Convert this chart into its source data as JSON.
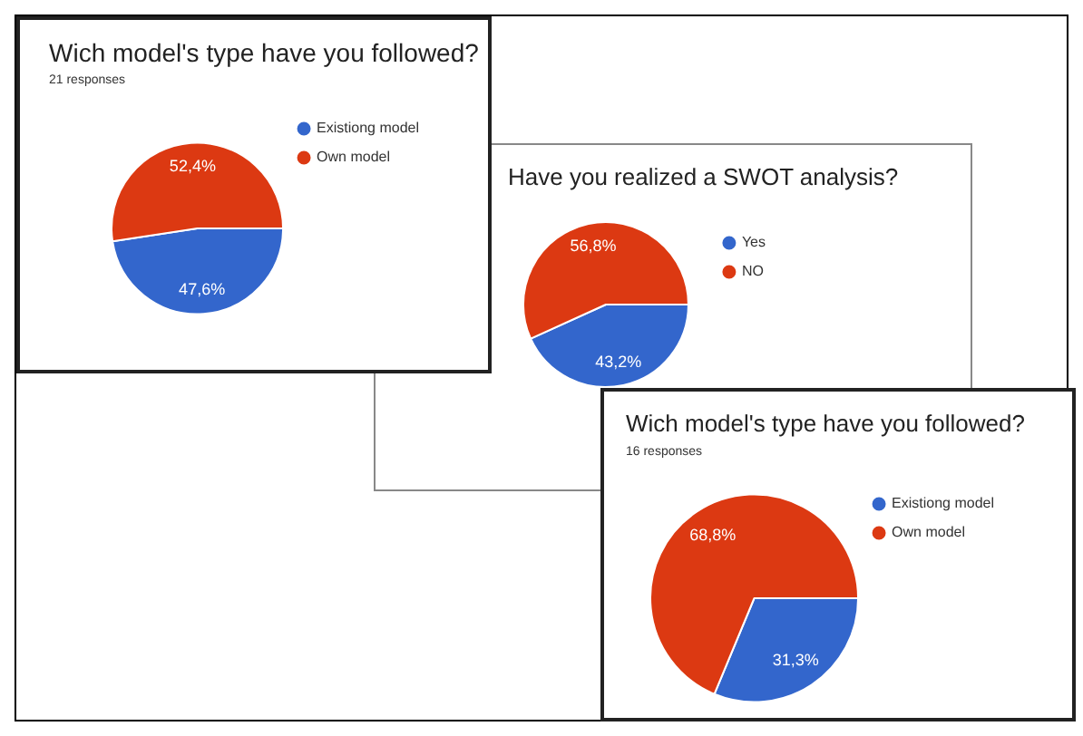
{
  "chart_data": [
    {
      "type": "pie",
      "title": "Wich model's type have you followed?",
      "subtitle": "21 responses",
      "categories": [
        "Existiong model",
        "Own model"
      ],
      "values": [
        47.6,
        52.4
      ],
      "colors": [
        "#3366cc",
        "#dc3912"
      ],
      "value_labels": [
        "47,6%",
        "52,4%"
      ],
      "legend": "top right"
    },
    {
      "type": "pie",
      "title": "Have you realized a SWOT analysis?",
      "categories": [
        "Yes",
        "NO"
      ],
      "values": [
        43.2,
        56.8
      ],
      "colors": [
        "#3366cc",
        "#dc3912"
      ],
      "value_labels": [
        "43,2%",
        "56,8%"
      ],
      "legend": "top right"
    },
    {
      "type": "pie",
      "title": "Wich model's type have you followed?",
      "subtitle": "16 responses",
      "categories": [
        "Existiong model",
        "Own model"
      ],
      "values": [
        31.3,
        68.8
      ],
      "colors": [
        "#3366cc",
        "#dc3912"
      ],
      "value_labels": [
        "31,3%",
        "68,8%"
      ],
      "legend": "top right"
    }
  ]
}
